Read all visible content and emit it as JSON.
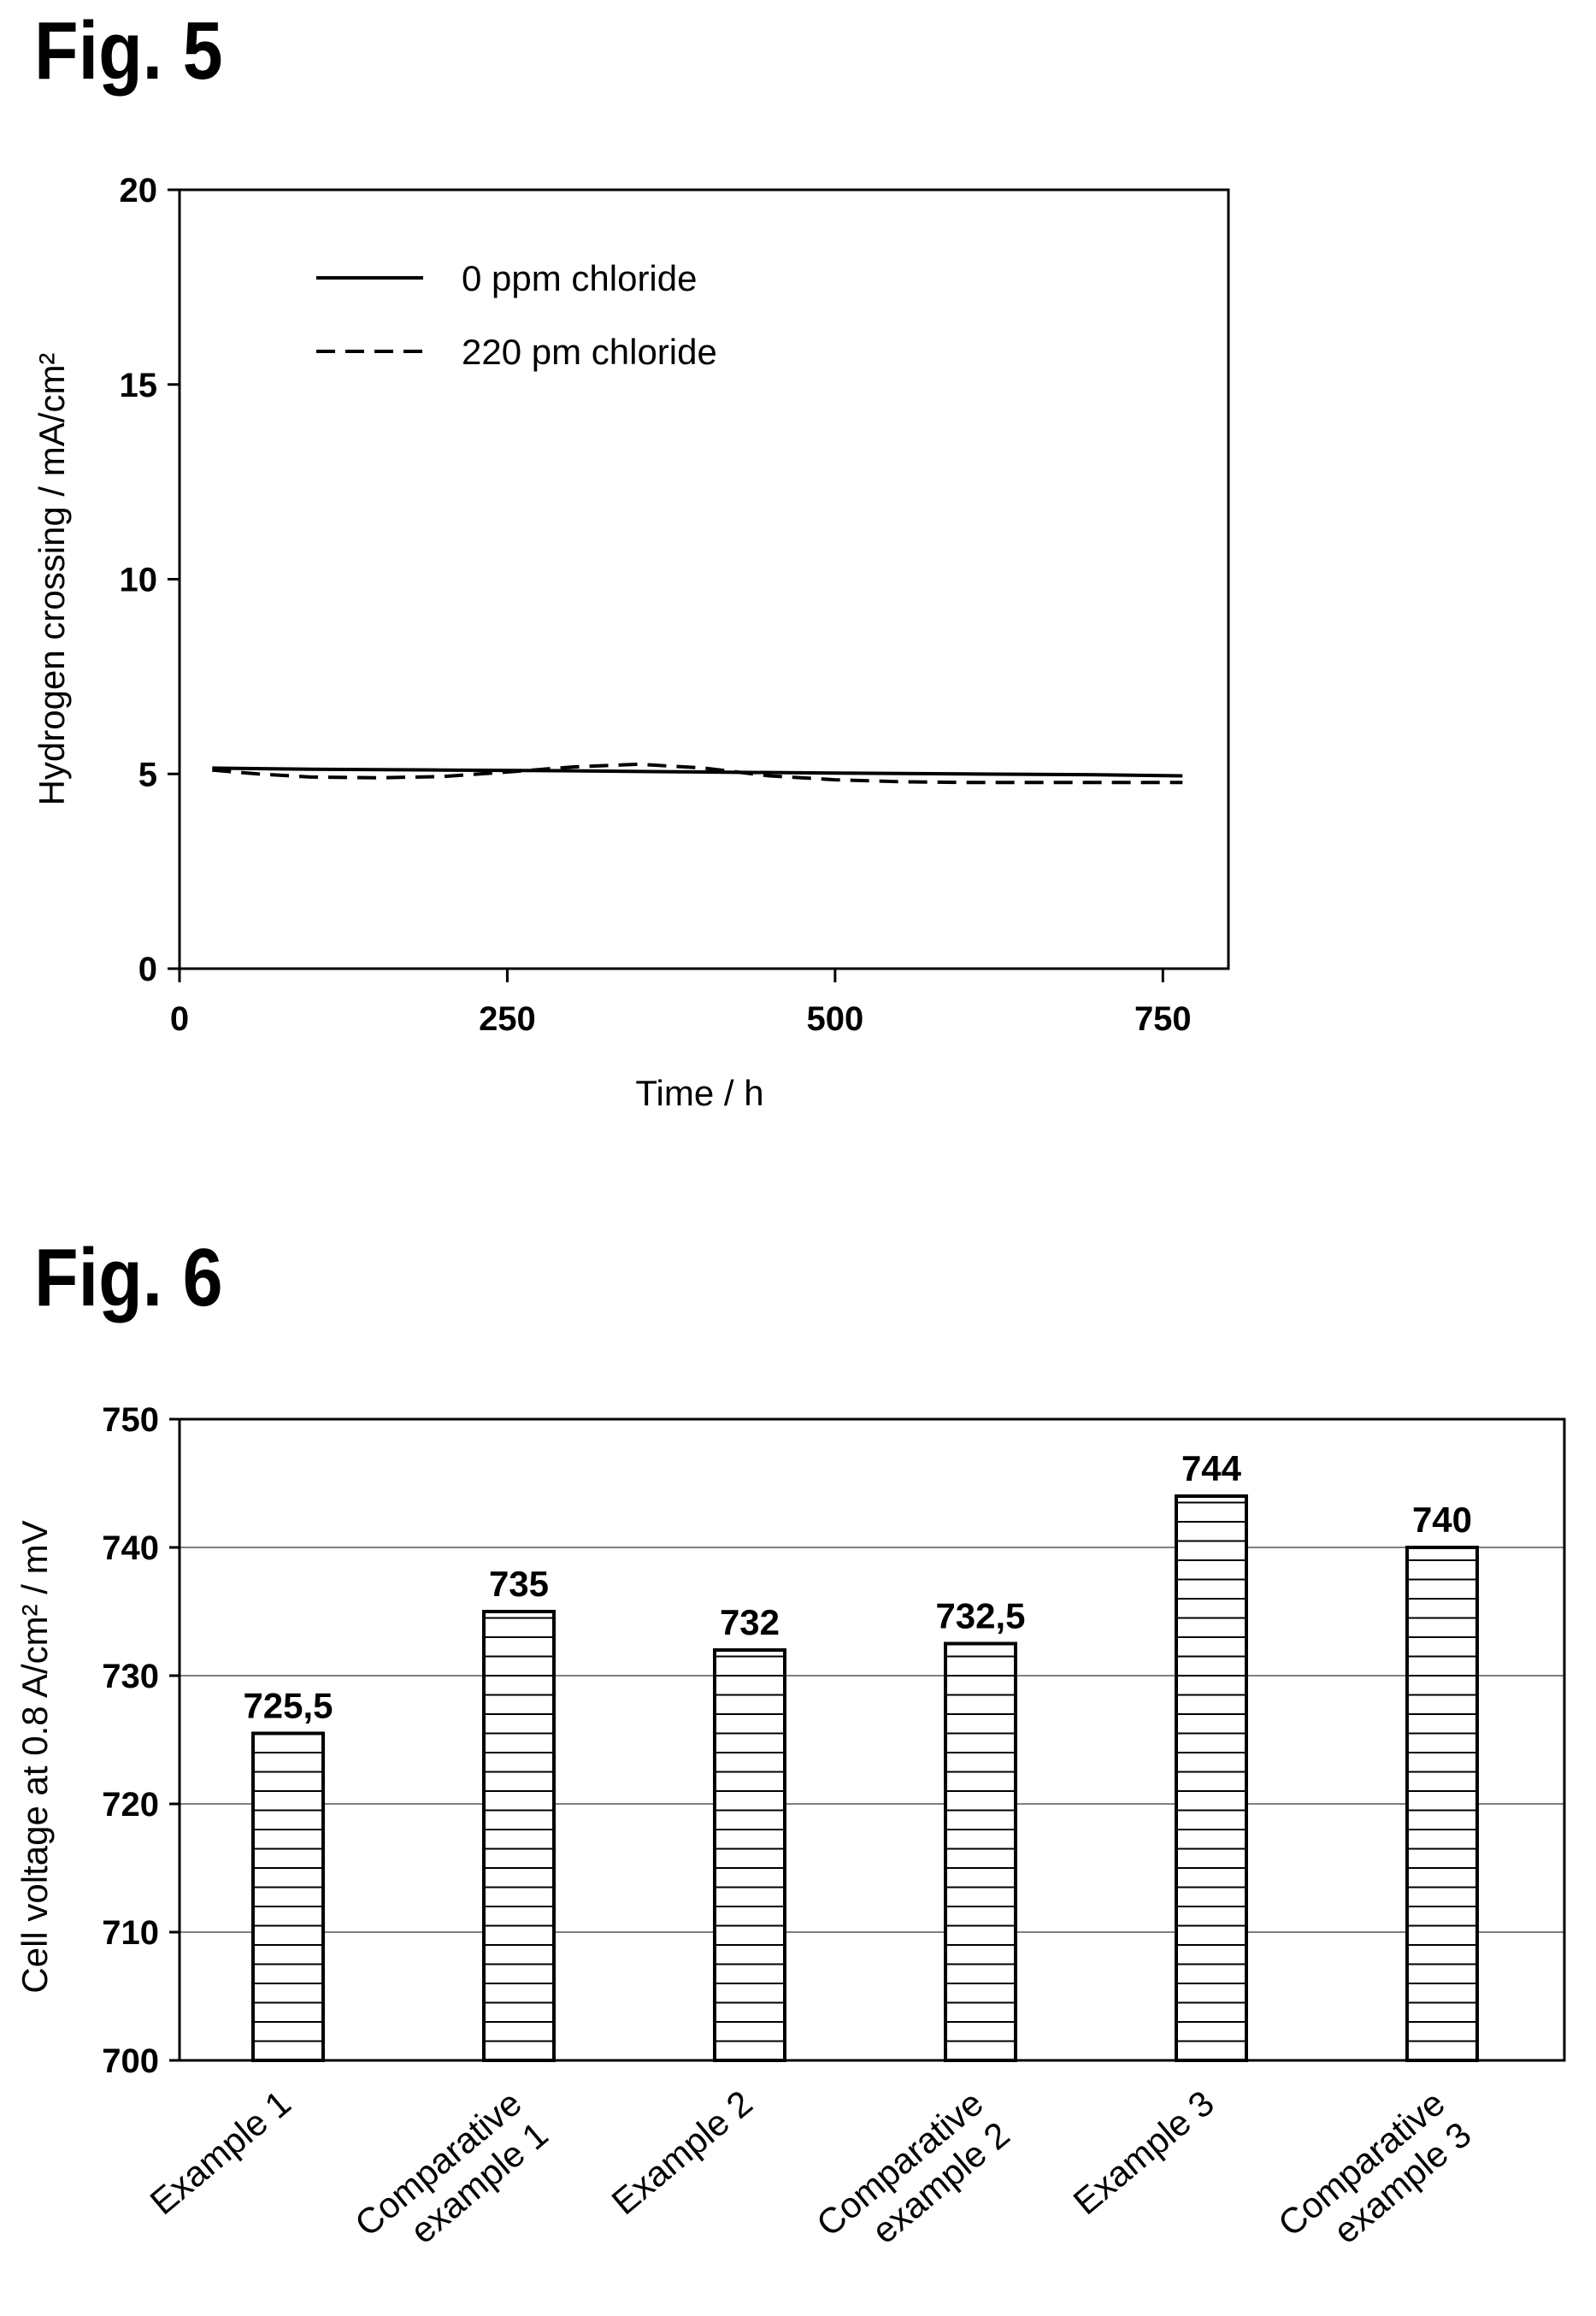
{
  "figures": {
    "fig5_title": "Fig. 5",
    "fig6_title": "Fig. 6"
  },
  "chart_data": [
    {
      "type": "line",
      "title": "",
      "xlabel": "Time / h",
      "ylabel": "Hydrogen crossing / mA/cm²",
      "xlim": [
        0,
        800
      ],
      "ylim": [
        0,
        20
      ],
      "xticks": [
        "0",
        "250",
        "500",
        "750"
      ],
      "yticks": [
        "0",
        "5",
        "10",
        "15",
        "20"
      ],
      "legend_position": "top-left",
      "series": [
        {
          "name": "0 ppm chloride",
          "style": "solid",
          "x": [
            25,
            100,
            200,
            300,
            400,
            500,
            600,
            700,
            765
          ],
          "values": [
            5.15,
            5.12,
            5.1,
            5.08,
            5.05,
            5.02,
            5.0,
            4.98,
            4.95
          ]
        },
        {
          "name": "220 pm chloride",
          "style": "dashed",
          "x": [
            25,
            60,
            100,
            150,
            200,
            250,
            300,
            350,
            400,
            450,
            500,
            550,
            600,
            650,
            700,
            765
          ],
          "values": [
            5.1,
            5.0,
            4.92,
            4.9,
            4.93,
            5.05,
            5.18,
            5.25,
            5.15,
            4.95,
            4.85,
            4.8,
            4.78,
            4.78,
            4.78,
            4.78
          ]
        }
      ]
    },
    {
      "type": "bar",
      "title": "",
      "xlabel": "",
      "ylabel": "Cell voltage at 0.8 A/cm² / mV",
      "ylim": [
        700,
        750
      ],
      "yticks": [
        "700",
        "710",
        "720",
        "730",
        "740",
        "750"
      ],
      "grid": true,
      "categories": [
        [
          "Example 1"
        ],
        [
          "Comparative",
          "example 1"
        ],
        [
          "Example 2"
        ],
        [
          "Comparative",
          "example 2"
        ],
        [
          "Example 3"
        ],
        [
          "Comparative",
          "example 3"
        ]
      ],
      "values": [
        725.5,
        735,
        732,
        732.5,
        744,
        740
      ],
      "value_labels": [
        "725,5",
        "735",
        "732",
        "732,5",
        "744",
        "740"
      ]
    }
  ]
}
